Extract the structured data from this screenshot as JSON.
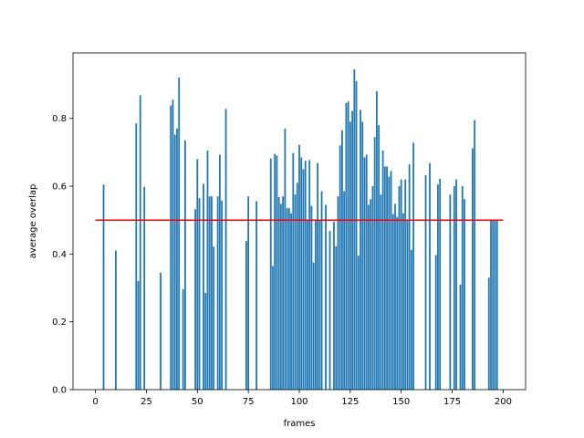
{
  "chart_data": {
    "type": "bar",
    "title": "",
    "xlabel": "frames",
    "ylabel": "average overlap",
    "xlim": [
      -11,
      211
    ],
    "ylim": [
      0.0,
      0.993
    ],
    "xticks": [
      0,
      25,
      50,
      75,
      100,
      125,
      150,
      175,
      200
    ],
    "xtick_labels": [
      "0",
      "25",
      "50",
      "75",
      "100",
      "125",
      "150",
      "175",
      "200"
    ],
    "yticks": [
      0.0,
      0.2,
      0.4,
      0.6,
      0.8
    ],
    "ytick_labels": [
      "0.0",
      "0.2",
      "0.4",
      "0.6",
      "0.8"
    ],
    "grid": false,
    "bar_color": "#1f77b4",
    "x": [
      4,
      10,
      20,
      21,
      22,
      24,
      32,
      37,
      38,
      39,
      40,
      41,
      43,
      44,
      49,
      50,
      51,
      53,
      54,
      55,
      56,
      57,
      58,
      60,
      61,
      62,
      64,
      74,
      75,
      79,
      86,
      87,
      88,
      89,
      90,
      91,
      92,
      93,
      94,
      95,
      96,
      97,
      98,
      99,
      100,
      101,
      102,
      103,
      104,
      105,
      106,
      107,
      108,
      109,
      110,
      111,
      113,
      115,
      117,
      118,
      119,
      120,
      121,
      122,
      123,
      124,
      125,
      126,
      127,
      128,
      129,
      130,
      131,
      132,
      133,
      134,
      135,
      136,
      137,
      138,
      139,
      140,
      141,
      142,
      143,
      144,
      145,
      146,
      147,
      148,
      149,
      150,
      151,
      152,
      153,
      154,
      155,
      156,
      162,
      164,
      167,
      168,
      169,
      174,
      176,
      177,
      179,
      180,
      181,
      185,
      186,
      193,
      194,
      195,
      196,
      197
    ],
    "values": [
      0.605,
      0.41,
      0.785,
      0.32,
      0.868,
      0.598,
      0.345,
      0.838,
      0.855,
      0.752,
      0.77,
      0.92,
      0.296,
      0.735,
      0.532,
      0.68,
      0.565,
      0.607,
      0.285,
      0.705,
      0.57,
      0.57,
      0.422,
      0.57,
      0.693,
      0.558,
      0.828,
      0.438,
      0.57,
      0.556,
      0.682,
      0.365,
      0.695,
      0.69,
      0.568,
      0.548,
      0.57,
      0.77,
      0.535,
      0.535,
      0.52,
      0.698,
      0.575,
      0.61,
      0.722,
      0.685,
      0.65,
      0.675,
      0.5,
      0.677,
      0.542,
      0.375,
      0.5,
      0.668,
      0.5,
      0.585,
      0.545,
      0.468,
      0.495,
      0.423,
      0.57,
      0.72,
      0.765,
      0.585,
      0.845,
      0.85,
      0.79,
      0.822,
      0.945,
      0.91,
      0.395,
      0.825,
      0.79,
      0.685,
      0.693,
      0.545,
      0.562,
      0.6,
      0.745,
      0.88,
      0.78,
      0.575,
      0.705,
      0.658,
      0.658,
      0.628,
      0.645,
      0.518,
      0.548,
      0.51,
      0.6,
      0.62,
      0.52,
      0.62,
      0.5,
      0.665,
      0.412,
      0.728,
      0.633,
      0.668,
      0.397,
      0.605,
      0.622,
      0.575,
      0.6,
      0.62,
      0.31,
      0.6,
      0.562,
      0.712,
      0.795,
      0.33,
      0.5,
      0.5,
      0.5,
      0.5
    ],
    "hline": {
      "y": 0.5,
      "x_start": 0,
      "x_end": 200,
      "color": "#ff0000"
    }
  }
}
